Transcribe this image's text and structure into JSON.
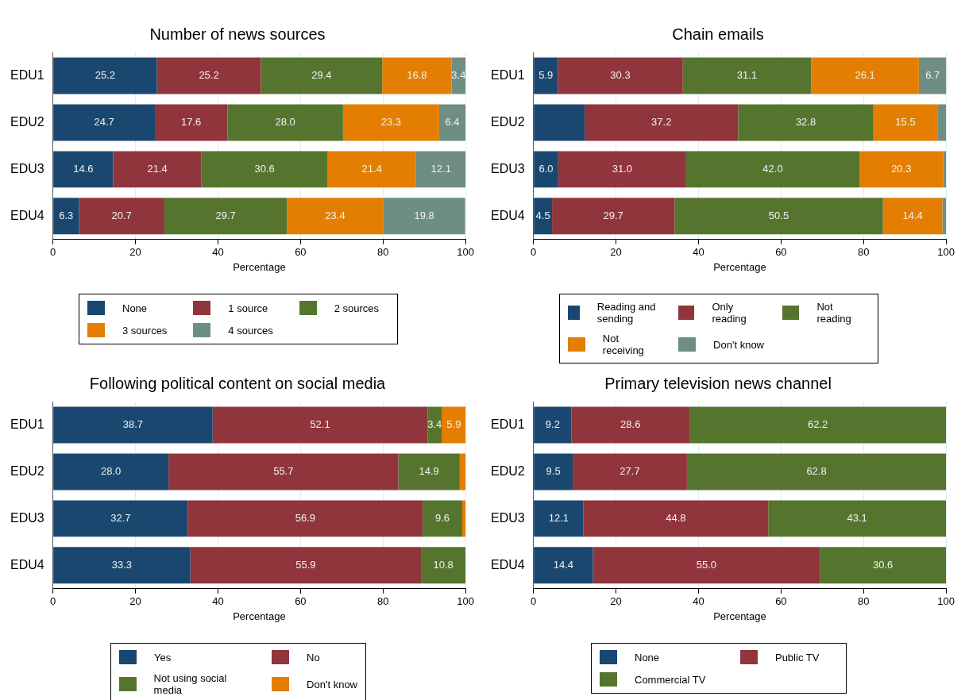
{
  "chart_data": [
    {
      "type": "bar",
      "orientation": "horizontal",
      "stacked": true,
      "title": "Number of news sources",
      "xlabel": "Percentage",
      "categories": [
        "EDU1",
        "EDU2",
        "EDU3",
        "EDU4"
      ],
      "xlim": [
        0,
        100
      ],
      "xticks": [
        0,
        20,
        40,
        60,
        80,
        100
      ],
      "grid": "x",
      "legend": "bottom",
      "series": [
        {
          "name": "None",
          "color": "#1a476f",
          "values": [
            25.2,
            24.7,
            14.6,
            6.3
          ],
          "value_labels": [
            "25.2",
            "24.7",
            "14.6",
            "6.3"
          ]
        },
        {
          "name": "1 source",
          "color": "#90353b",
          "values": [
            25.2,
            17.6,
            21.4,
            20.7
          ],
          "value_labels": [
            "25.2",
            "17.6",
            "21.4",
            "20.7"
          ]
        },
        {
          "name": "2 sources",
          "color": "#55752f",
          "values": [
            29.4,
            28.0,
            30.6,
            29.7
          ],
          "value_labels": [
            "29.4",
            "28.0",
            "30.6",
            "29.7"
          ]
        },
        {
          "name": "3 sources",
          "color": "#e37e00",
          "values": [
            16.8,
            23.3,
            21.4,
            23.4
          ],
          "value_labels": [
            "16.8",
            "23.3",
            "21.4",
            "23.4"
          ]
        },
        {
          "name": "4 sources",
          "color": "#6e8e84",
          "values": [
            3.4,
            6.4,
            12.1,
            19.8
          ],
          "value_labels": [
            "3.4",
            "6.4",
            "12.1",
            "19.8"
          ]
        }
      ]
    },
    {
      "type": "bar",
      "orientation": "horizontal",
      "stacked": true,
      "title": "Chain emails",
      "xlabel": "Percentage",
      "categories": [
        "EDU1",
        "EDU2",
        "EDU3",
        "EDU4"
      ],
      "xlim": [
        0,
        100
      ],
      "xticks": [
        0,
        20,
        40,
        60,
        80,
        100
      ],
      "grid": "x",
      "legend": "bottom",
      "series": [
        {
          "name": "Reading and sending",
          "color": "#1a476f",
          "values": [
            5.9,
            12.4,
            6.0,
            4.5
          ],
          "value_labels": [
            "5.9",
            null,
            "6.0",
            "4.5"
          ]
        },
        {
          "name": "Only reading",
          "color": "#90353b",
          "values": [
            30.3,
            37.2,
            31.0,
            29.7
          ],
          "value_labels": [
            "30.3",
            "37.2",
            "31.0",
            "29.7"
          ]
        },
        {
          "name": "Not reading",
          "color": "#55752f",
          "values": [
            31.1,
            32.8,
            42.0,
            50.5
          ],
          "value_labels": [
            "31.1",
            "32.8",
            "42.0",
            "50.5"
          ]
        },
        {
          "name": "Not receiving",
          "color": "#e37e00",
          "values": [
            26.1,
            15.5,
            20.3,
            14.4
          ],
          "value_labels": [
            "26.1",
            "15.5",
            "20.3",
            "14.4"
          ]
        },
        {
          "name": "Don't know",
          "color": "#6e8e84",
          "values": [
            6.7,
            2.1,
            0.7,
            0.9
          ],
          "value_labels": [
            "6.7",
            null,
            null,
            null
          ]
        }
      ]
    },
    {
      "type": "bar",
      "orientation": "horizontal",
      "stacked": true,
      "title": "Following political content on social media",
      "xlabel": "Percentage",
      "categories": [
        "EDU1",
        "EDU2",
        "EDU3",
        "EDU4"
      ],
      "xlim": [
        0,
        100
      ],
      "xticks": [
        0,
        20,
        40,
        60,
        80,
        100
      ],
      "grid": "x",
      "legend": "bottom",
      "series": [
        {
          "name": "Yes",
          "color": "#1a476f",
          "values": [
            38.7,
            28.0,
            32.7,
            33.3
          ],
          "value_labels": [
            "38.7",
            "28.0",
            "32.7",
            "33.3"
          ]
        },
        {
          "name": "No",
          "color": "#90353b",
          "values": [
            52.1,
            55.7,
            56.9,
            55.9
          ],
          "value_labels": [
            "52.1",
            "55.7",
            "56.9",
            "55.9"
          ]
        },
        {
          "name": "Not using social media",
          "color": "#55752f",
          "values": [
            3.4,
            14.9,
            9.6,
            10.8
          ],
          "value_labels": [
            "3.4",
            "14.9",
            "9.6",
            "10.8"
          ]
        },
        {
          "name": "Don't know",
          "color": "#e37e00",
          "values": [
            5.9,
            1.4,
            0.8,
            null
          ],
          "value_labels": [
            "5.9",
            null,
            null,
            null
          ]
        }
      ]
    },
    {
      "type": "bar",
      "orientation": "horizontal",
      "stacked": true,
      "title": "Primary television news channel",
      "xlabel": "Percentage",
      "categories": [
        "EDU1",
        "EDU2",
        "EDU3",
        "EDU4"
      ],
      "xlim": [
        0,
        100
      ],
      "xticks": [
        0,
        20,
        40,
        60,
        80,
        100
      ],
      "grid": "x",
      "legend": "bottom",
      "series": [
        {
          "name": "None",
          "color": "#1a476f",
          "values": [
            9.2,
            9.5,
            12.1,
            14.4
          ],
          "value_labels": [
            "9.2",
            "9.5",
            "12.1",
            "14.4"
          ]
        },
        {
          "name": "Public TV",
          "color": "#90353b",
          "values": [
            28.6,
            27.7,
            44.8,
            55.0
          ],
          "value_labels": [
            "28.6",
            "27.7",
            "44.8",
            "55.0"
          ]
        },
        {
          "name": "Commercial TV",
          "color": "#55752f",
          "values": [
            62.2,
            62.8,
            43.1,
            30.6
          ],
          "value_labels": [
            "62.2",
            "62.8",
            "43.1",
            "30.6"
          ]
        }
      ]
    }
  ]
}
